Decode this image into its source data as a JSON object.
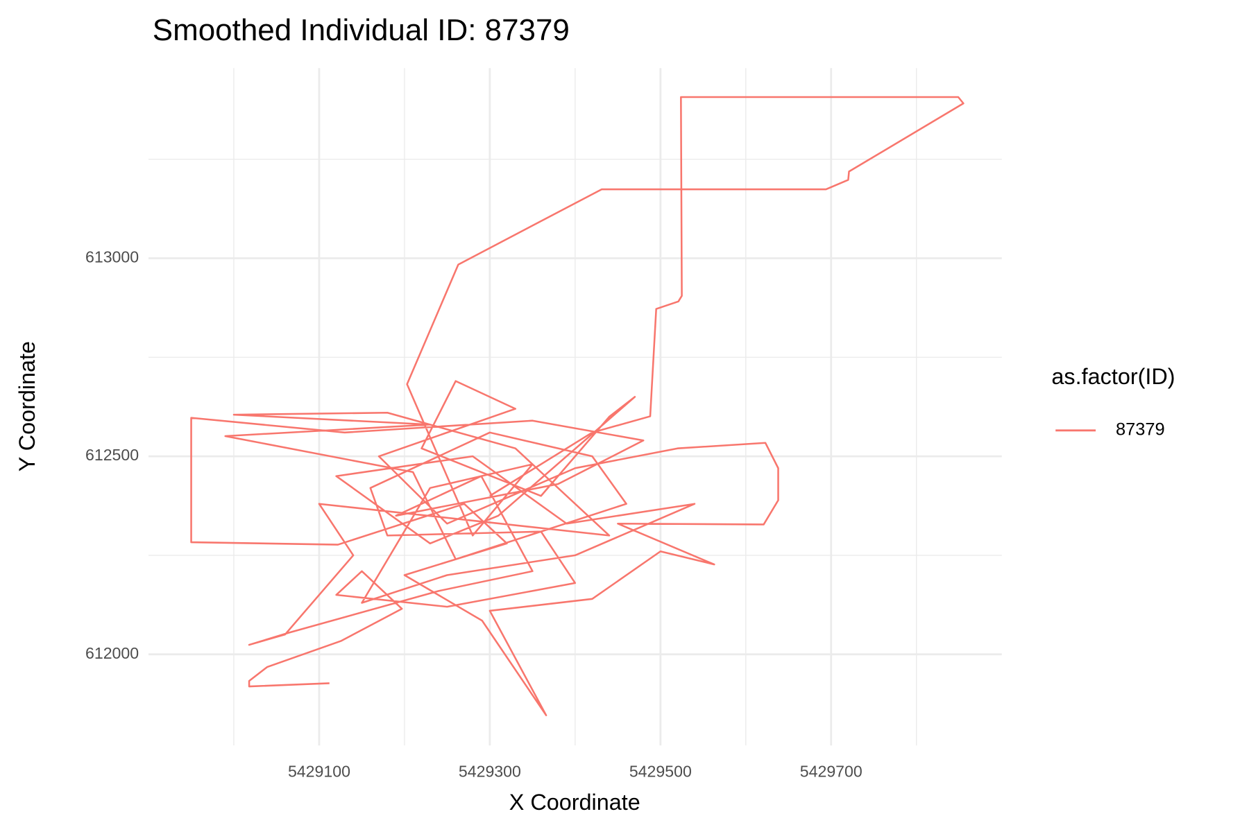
{
  "chart_data": {
    "type": "line",
    "title": "Smoothed Individual ID: 87379",
    "xlabel": "X Coordinate",
    "ylabel": "Y Coordinate",
    "legend_title": "as.factor(ID)",
    "legend_position": "right",
    "grid": true,
    "xlim": [
      5428900,
      5429900
    ],
    "ylim": [
      611770,
      613480
    ],
    "xticks": [
      5429100,
      5429300,
      5429500,
      5429700
    ],
    "yticks": [
      612000,
      612500,
      613000
    ],
    "x_minor_ticks": [
      5429000,
      5429200,
      5429400,
      5429600,
      5429800
    ],
    "y_minor_ticks": [
      612250,
      612750,
      613250
    ],
    "x": [
      5429112,
      5429018,
      5429018,
      5429039,
      5429126,
      5429197,
      5429150,
      5429120,
      5429250,
      5429400,
      5429360,
      5429180,
      5429160,
      5429300,
      5429420,
      5429460,
      5429260,
      5429210,
      5428990,
      5429230,
      5429000,
      5429180,
      5429330,
      5429440,
      5429100,
      5429140,
      5429060,
      5429018,
      5429065,
      5429240,
      5429350,
      5429290,
      5429190,
      5429380,
      5429480,
      5429350,
      5429130,
      5428950,
      5428950,
      5429122,
      5429270,
      5429320,
      5429200,
      5429291,
      5429366,
      5429300,
      5429420,
      5429500,
      5429563,
      5429450,
      5429621,
      5429638,
      5429638,
      5429623,
      5429520,
      5429400,
      5429250,
      5429170,
      5429330,
      5429260,
      5429220,
      5429360,
      5429440,
      5429470,
      5429310,
      5429230,
      5429120,
      5429280,
      5429390,
      5429540,
      5429400,
      5429250,
      5429150,
      5429230,
      5429350,
      5429280,
      5429203,
      5429263,
      5429431,
      5429694,
      5429720,
      5429721,
      5429855,
      5429849,
      5429524,
      5429525,
      5429521,
      5429495,
      5429488,
      5429420,
      5429300
    ],
    "series": [
      {
        "name": "87379",
        "color": "#F8766D",
        "values": [
          611927,
          611919,
          611933,
          611968,
          612034,
          612115,
          612210,
          612150,
          612120,
          612180,
          612310,
          612300,
          612420,
          612560,
          612500,
          612380,
          612240,
          612460,
          612551,
          612580,
          612605,
          612610,
          612520,
          612300,
          612380,
          612250,
          612050,
          612024,
          612055,
          612160,
          612210,
          612450,
          612350,
          612430,
          612540,
          612590,
          612560,
          612597,
          612283,
          612277,
          612380,
          612280,
          612200,
          612085,
          611846,
          612110,
          612140,
          612260,
          612227,
          612330,
          612328,
          612389,
          612470,
          612534,
          612520,
          612470,
          612330,
          612500,
          612620,
          612690,
          612520,
          612400,
          612600,
          612650,
          612350,
          612280,
          612450,
          612500,
          612330,
          612380,
          612250,
          612200,
          612130,
          612420,
          612480,
          612300,
          612682,
          612984,
          613174,
          613174,
          613198,
          613219,
          613391,
          613407,
          613407,
          612905,
          612891,
          612872,
          612601,
          612560,
          612400
        ]
      }
    ]
  }
}
